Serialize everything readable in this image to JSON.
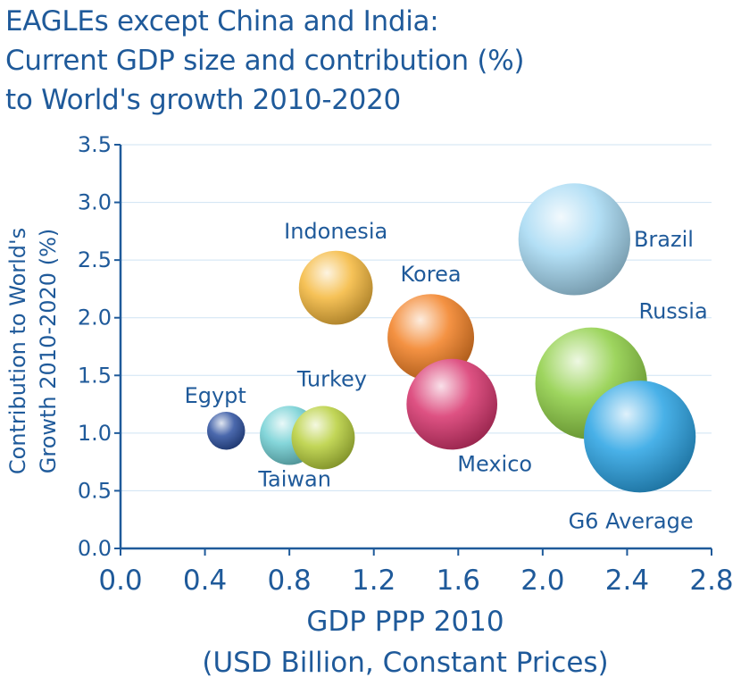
{
  "title_lines": [
    "EAGLEs except China and India:",
    "Current GDP size and contribution (%)",
    "to World's growth 2010-2020"
  ],
  "chart_data": {
    "type": "scatter",
    "title": "EAGLEs except China and India: Current GDP size and contribution (%) to World's growth 2010-2020",
    "xlabel_lines": [
      "GDP PPP 2010",
      "(USD Billion, Constant Prices)"
    ],
    "ylabel_lines": [
      "Contribution to World's",
      "Growth 2010-2020 (%)"
    ],
    "xlim": [
      0.0,
      2.8
    ],
    "ylim": [
      0.0,
      3.5
    ],
    "x_ticks": [
      "0.0",
      "0.4",
      "0.8",
      "1.2",
      "1.6",
      "2.0",
      "2.4",
      "2.8"
    ],
    "y_ticks": [
      "0.0",
      "0.5",
      "1.0",
      "1.5",
      "2.0",
      "2.5",
      "3.0",
      "3.5"
    ],
    "grid": "horizontal",
    "points": [
      {
        "name": "Egypt",
        "x": 0.5,
        "y": 1.02,
        "size": 0.18,
        "color": "#2b4f9e",
        "label_pos": "above"
      },
      {
        "name": "Taiwan",
        "x": 0.8,
        "y": 0.98,
        "size": 0.28,
        "color": "#6fcfd3",
        "label_pos": "below"
      },
      {
        "name": "Turkey",
        "x": 0.96,
        "y": 0.96,
        "size": 0.3,
        "color": "#b7cf3a",
        "label_pos": "above"
      },
      {
        "name": "Indonesia",
        "x": 1.02,
        "y": 2.26,
        "size": 0.35,
        "color": "#f4b73a",
        "label_pos": "above"
      },
      {
        "name": "Korea",
        "x": 1.47,
        "y": 1.83,
        "size": 0.41,
        "color": "#f27f22",
        "label_pos": "above"
      },
      {
        "name": "Mexico",
        "x": 1.57,
        "y": 1.25,
        "size": 0.43,
        "color": "#d8336d",
        "label_pos": "below"
      },
      {
        "name": "Brazil",
        "x": 2.15,
        "y": 2.68,
        "size": 0.53,
        "color": "#a6d9f3",
        "label_pos": "right"
      },
      {
        "name": "Russia",
        "x": 2.23,
        "y": 1.43,
        "size": 0.53,
        "color": "#8dce43",
        "label_pos": "above-right"
      },
      {
        "name": "G6 Average",
        "x": 2.46,
        "y": 0.97,
        "size": 0.53,
        "color": "#29a3e4",
        "label_pos": "below"
      }
    ]
  }
}
